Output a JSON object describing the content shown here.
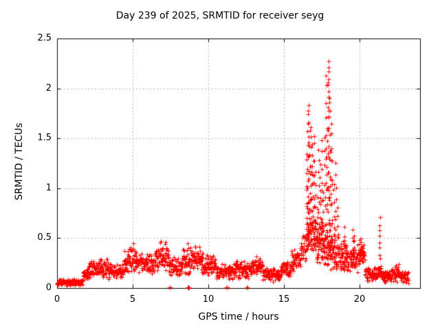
{
  "title": "Day 239 of 2025, SRMTID for receiver seyg",
  "chart_data": {
    "type": "scatter",
    "title": "Day 239 of 2025, SRMTID for receiver seyg",
    "xlabel": "GPS time / hours",
    "ylabel": "SRMTID / TECUs",
    "xlim": [
      0,
      24
    ],
    "ylim": [
      0,
      2.5
    ],
    "xticks": [
      0,
      5,
      10,
      15,
      20
    ],
    "yticks": [
      0,
      0.5,
      1,
      1.5,
      2,
      2.5
    ],
    "grid": true,
    "grid_color": "#b4b4b4",
    "legend": "none",
    "marker": {
      "shape": "plus",
      "color": "#ff0000",
      "size": 7
    },
    "band_segments": [
      [
        0.0,
        1.7,
        0.02,
        0.1,
        130
      ],
      [
        1.7,
        2.1,
        0.06,
        0.2,
        30
      ],
      [
        2.1,
        2.7,
        0.1,
        0.28,
        45
      ],
      [
        2.7,
        3.4,
        0.1,
        0.3,
        52
      ],
      [
        3.4,
        4.4,
        0.08,
        0.25,
        72
      ],
      [
        4.4,
        5.3,
        0.12,
        0.42,
        66
      ],
      [
        5.3,
        6.5,
        0.12,
        0.36,
        86
      ],
      [
        6.5,
        7.4,
        0.15,
        0.46,
        66
      ],
      [
        7.4,
        8.3,
        0.1,
        0.36,
        64
      ],
      [
        8.3,
        9.0,
        0.12,
        0.44,
        52
      ],
      [
        9.0,
        9.6,
        0.15,
        0.42,
        44
      ],
      [
        9.6,
        10.5,
        0.12,
        0.35,
        64
      ],
      [
        10.5,
        11.8,
        0.08,
        0.26,
        92
      ],
      [
        11.8,
        12.8,
        0.08,
        0.3,
        72
      ],
      [
        12.8,
        13.6,
        0.1,
        0.33,
        58
      ],
      [
        13.6,
        14.8,
        0.06,
        0.22,
        86
      ],
      [
        14.8,
        15.5,
        0.1,
        0.28,
        50
      ],
      [
        15.5,
        16.1,
        0.15,
        0.42,
        44
      ],
      [
        16.1,
        16.45,
        0.2,
        0.6,
        26
      ],
      [
        16.45,
        17.15,
        0.25,
        0.85,
        55
      ],
      [
        17.15,
        17.65,
        0.2,
        0.7,
        40
      ],
      [
        17.65,
        18.2,
        0.15,
        0.6,
        45
      ],
      [
        18.2,
        18.65,
        0.15,
        0.55,
        35
      ],
      [
        18.65,
        19.3,
        0.12,
        0.5,
        46
      ],
      [
        19.3,
        19.85,
        0.12,
        0.45,
        40
      ],
      [
        19.85,
        20.35,
        0.2,
        0.48,
        38
      ],
      [
        20.35,
        21.25,
        0.06,
        0.22,
        64
      ],
      [
        21.25,
        21.45,
        0.1,
        0.25,
        14
      ],
      [
        21.45,
        22.15,
        0.05,
        0.2,
        50
      ],
      [
        22.15,
        22.6,
        0.06,
        0.26,
        34
      ],
      [
        22.6,
        23.25,
        0.04,
        0.2,
        48
      ]
    ],
    "spike_columns": [
      [
        16.5,
        0.35,
        1.45,
        10
      ],
      [
        16.57,
        0.4,
        1.74,
        12
      ],
      [
        16.63,
        0.45,
        1.83,
        12
      ],
      [
        16.7,
        0.5,
        1.62,
        10
      ],
      [
        16.78,
        0.35,
        1.7,
        11
      ],
      [
        16.85,
        0.4,
        1.55,
        10
      ],
      [
        16.93,
        0.3,
        1.35,
        9
      ],
      [
        17.0,
        0.35,
        1.62,
        10
      ],
      [
        17.08,
        0.3,
        1.2,
        8
      ],
      [
        17.2,
        0.25,
        0.95,
        8
      ],
      [
        17.3,
        0.3,
        1.42,
        10
      ],
      [
        17.4,
        0.35,
        1.28,
        9
      ],
      [
        17.5,
        0.3,
        1.52,
        10
      ],
      [
        17.58,
        0.25,
        1.05,
        8
      ],
      [
        17.7,
        0.3,
        1.55,
        9
      ],
      [
        17.78,
        0.4,
        2.13,
        11
      ],
      [
        17.85,
        0.35,
        1.72,
        10
      ],
      [
        17.92,
        0.4,
        2.06,
        11
      ],
      [
        17.97,
        0.5,
        2.27,
        12
      ],
      [
        18.03,
        0.35,
        1.9,
        11
      ],
      [
        18.1,
        0.3,
        1.75,
        10
      ],
      [
        18.17,
        0.3,
        1.45,
        9
      ],
      [
        18.3,
        0.25,
        1.12,
        8
      ],
      [
        18.42,
        0.3,
        1.32,
        9
      ],
      [
        18.55,
        0.2,
        0.85,
        7
      ],
      [
        18.8,
        0.15,
        0.5,
        6
      ],
      [
        19.0,
        0.2,
        0.63,
        7
      ],
      [
        19.15,
        0.15,
        0.45,
        5
      ],
      [
        19.55,
        0.25,
        0.61,
        6
      ],
      [
        19.62,
        0.3,
        0.56,
        5
      ],
      [
        20.0,
        0.25,
        0.5,
        6
      ],
      [
        20.1,
        0.28,
        0.52,
        6
      ],
      [
        20.2,
        0.25,
        0.45,
        5
      ],
      [
        21.33,
        0.27,
        0.73,
        8
      ]
    ],
    "peak_points": [
      [
        17.95,
        2.27
      ],
      [
        17.97,
        2.21
      ],
      [
        17.78,
        2.13
      ],
      [
        17.9,
        2.06
      ],
      [
        17.92,
        2.04
      ],
      [
        17.95,
        1.97
      ],
      [
        18.0,
        1.9
      ],
      [
        16.63,
        1.83
      ],
      [
        16.57,
        1.74
      ],
      [
        5.05,
        0.45
      ],
      [
        6.85,
        0.47
      ],
      [
        8.62,
        0.45
      ],
      [
        7.2,
        0.46
      ],
      [
        9.15,
        0.42
      ]
    ],
    "zero_points": [
      [
        7.43,
        0.005
      ],
      [
        7.48,
        0.005
      ],
      [
        8.62,
        0.01
      ],
      [
        8.65,
        0.005
      ],
      [
        8.68,
        0.008
      ],
      [
        8.7,
        0.003
      ],
      [
        8.73,
        0.006
      ],
      [
        11.2,
        0.005
      ],
      [
        11.25,
        0.008
      ],
      [
        12.53,
        0.005
      ],
      [
        12.58,
        0.008
      ]
    ]
  }
}
